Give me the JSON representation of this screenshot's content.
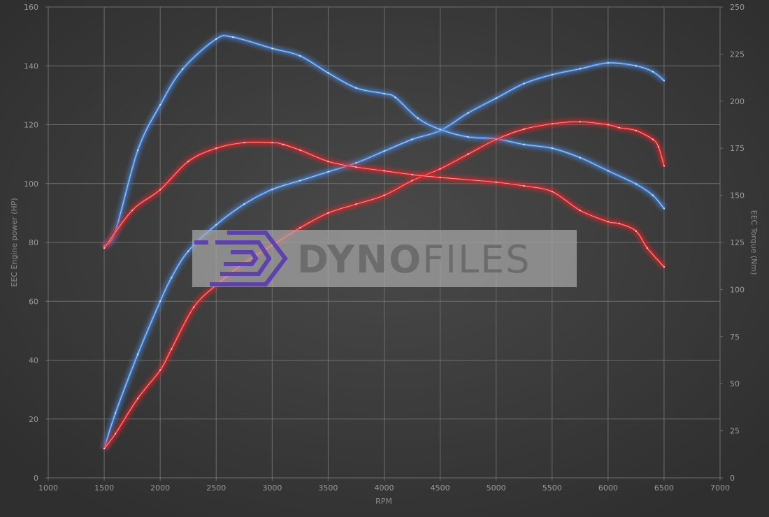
{
  "chart_data": {
    "type": "line",
    "title": "",
    "xlabel": "RPM",
    "ylabel_left": "EEC Engine power (HP)",
    "ylabel_right": "EEC Torque (Nm)",
    "xlim": [
      1000,
      7000
    ],
    "ylim_left": [
      0,
      160
    ],
    "ylim_right": [
      0,
      250
    ],
    "x_ticks": [
      1000,
      1500,
      2000,
      2500,
      3000,
      3500,
      4000,
      4500,
      5000,
      5500,
      6000,
      6500,
      7000
    ],
    "y_ticks_left": [
      0,
      20,
      40,
      60,
      80,
      100,
      120,
      140,
      160
    ],
    "y_ticks_right": [
      0,
      25,
      50,
      75,
      100,
      125,
      150,
      175,
      200,
      225,
      250
    ],
    "grid": true,
    "legend": "none",
    "colors": {
      "blue": "#4a86d8",
      "red": "#e0262b",
      "background": "#3a3a3a",
      "grid": "#6e6e6e"
    },
    "series": [
      {
        "axis": "left",
        "color": "blue",
        "x": [
          1500,
          1600,
          1800,
          2000,
          2100,
          2250,
          2500,
          2750,
          3000,
          3250,
          3500,
          3750,
          4000,
          4250,
          4500,
          4750,
          5000,
          5250,
          5500,
          5750,
          6000,
          6250,
          6400,
          6500
        ],
        "values": [
          10,
          22,
          42,
          60,
          68,
          77,
          86,
          93,
          98,
          101,
          104,
          107,
          111,
          115,
          118,
          124,
          129,
          134,
          137,
          139,
          141,
          140,
          138,
          135
        ]
      },
      {
        "axis": "right",
        "color": "blue",
        "x": [
          1500,
          1600,
          1800,
          2000,
          2200,
          2500,
          2650,
          3000,
          3250,
          3500,
          3750,
          4000,
          4100,
          4300,
          4500,
          4750,
          5000,
          5250,
          5500,
          5750,
          6000,
          6250,
          6400,
          6500
        ],
        "values": [
          123,
          131,
          174,
          198,
          217,
          233,
          234,
          228,
          224,
          215,
          207,
          204,
          202,
          191,
          185,
          181,
          180,
          177,
          175,
          170,
          163,
          156,
          150,
          143
        ]
      },
      {
        "axis": "left",
        "color": "red",
        "x": [
          1500,
          1600,
          1800,
          2000,
          2100,
          2300,
          2500,
          2750,
          3000,
          3250,
          3500,
          3750,
          4000,
          4250,
          4500,
          4750,
          5000,
          5250,
          5500,
          5750,
          6000,
          6100,
          6250,
          6400,
          6450,
          6500
        ],
        "values": [
          10,
          15,
          27,
          36.6,
          43.7,
          58,
          65.5,
          73,
          79,
          85,
          90,
          93,
          96,
          101,
          105,
          110,
          115,
          118.5,
          120.3,
          121,
          120,
          119,
          118,
          115,
          112.5,
          106
        ]
      },
      {
        "axis": "right",
        "color": "red",
        "x": [
          1500,
          1750,
          2000,
          2250,
          2500,
          2750,
          3000,
          3100,
          3250,
          3500,
          3750,
          4000,
          4250,
          4500,
          5000,
          5250,
          5500,
          5750,
          6000,
          6100,
          6250,
          6350,
          6500
        ],
        "values": [
          122,
          142,
          153,
          168,
          175,
          178,
          178,
          177,
          174,
          168,
          165,
          163,
          161,
          159.5,
          157,
          155,
          152,
          142,
          136,
          135,
          131,
          122,
          112
        ]
      }
    ]
  },
  "watermark": {
    "brand_bold": "DYNO",
    "brand_light": "FILES",
    "logo_color": "#5b3fb0"
  }
}
